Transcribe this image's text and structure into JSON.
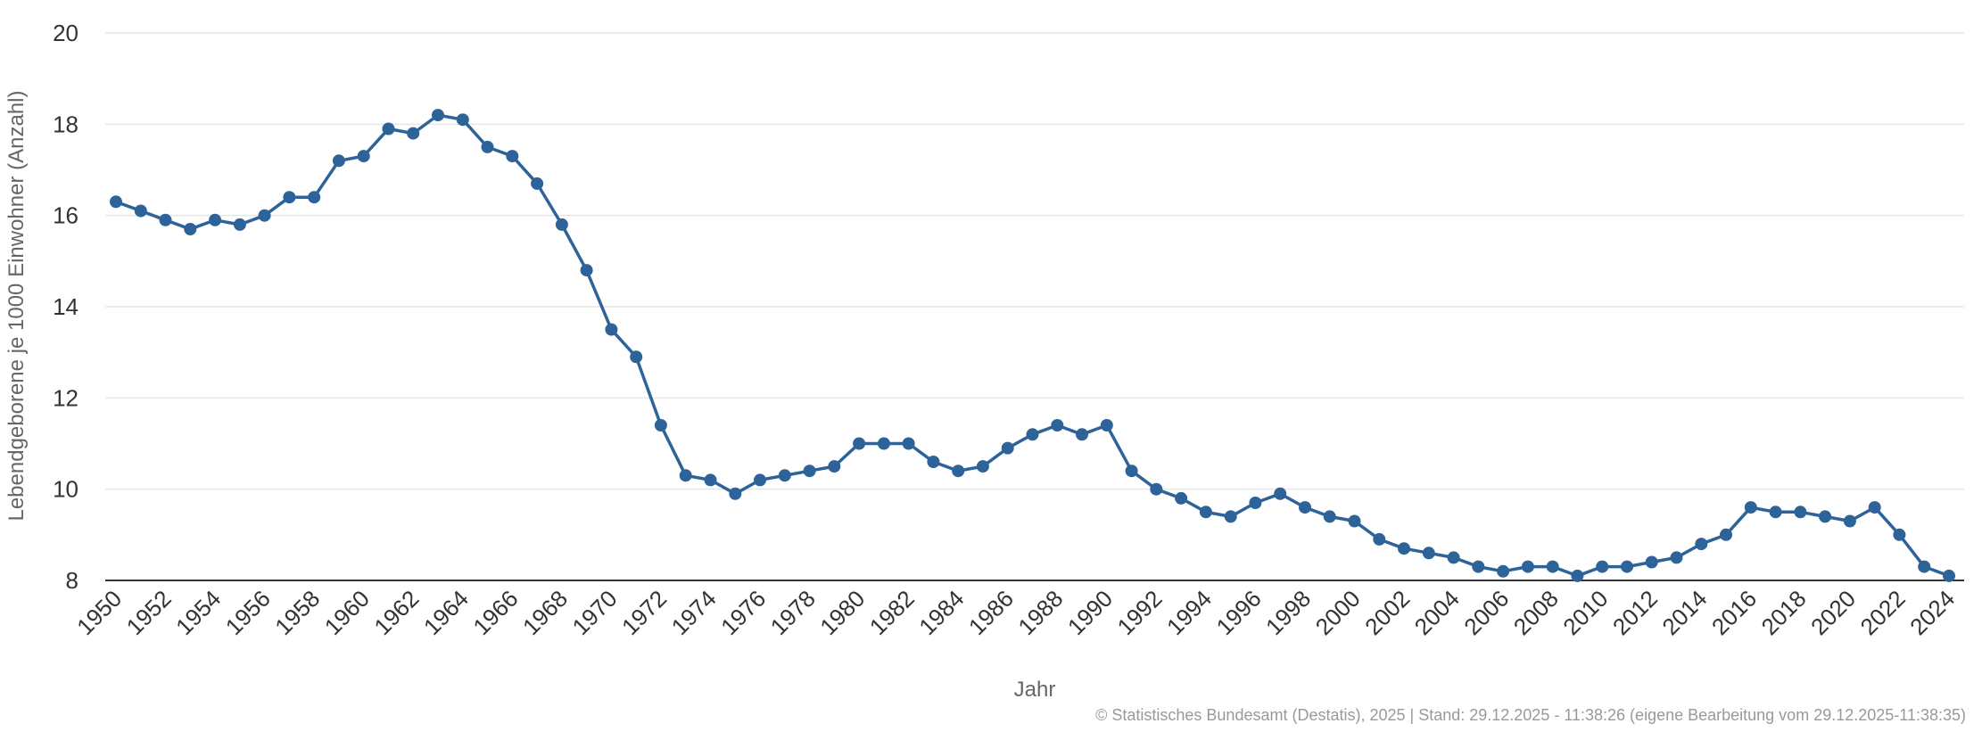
{
  "chart_data": {
    "type": "line",
    "title": "",
    "xlabel": "Jahr",
    "ylabel": "Lebendgeborene je 1000 Einwohner (Anzahl)",
    "ylim": [
      8,
      20
    ],
    "yticks": [
      "8",
      "10",
      "12",
      "14",
      "16",
      "18",
      "20"
    ],
    "grid": true,
    "credits": "© Statistisches Bundesamt (Destatis), 2025 | Stand: 29.12.2025 - 11:38:26 (eigene Bearbeitung vom 29.12.2025-11:38:35)",
    "x": [
      1950,
      1951,
      1952,
      1953,
      1954,
      1955,
      1956,
      1957,
      1958,
      1959,
      1960,
      1961,
      1962,
      1963,
      1964,
      1965,
      1966,
      1967,
      1968,
      1969,
      1970,
      1971,
      1972,
      1973,
      1974,
      1975,
      1976,
      1977,
      1978,
      1979,
      1980,
      1981,
      1982,
      1983,
      1984,
      1985,
      1986,
      1987,
      1988,
      1989,
      1990,
      1991,
      1992,
      1993,
      1994,
      1995,
      1996,
      1997,
      1998,
      1999,
      2000,
      2001,
      2002,
      2003,
      2004,
      2005,
      2006,
      2007,
      2008,
      2009,
      2010,
      2011,
      2012,
      2013,
      2014,
      2015,
      2016,
      2017,
      2018,
      2019,
      2020,
      2021,
      2022,
      2023,
      2024
    ],
    "xtick_labels": [
      "1950",
      "1952",
      "1954",
      "1956",
      "1958",
      "1960",
      "1962",
      "1964",
      "1966",
      "1968",
      "1970",
      "1972",
      "1974",
      "1976",
      "1978",
      "1980",
      "1982",
      "1984",
      "1986",
      "1988",
      "1990",
      "1992",
      "1994",
      "1996",
      "1998",
      "2000",
      "2002",
      "2004",
      "2006",
      "2008",
      "2010",
      "2012",
      "2014",
      "2016",
      "2018",
      "2020",
      "2022",
      "2024"
    ],
    "series": [
      {
        "name": "Lebendgeborene je 1000 Einwohner",
        "color": "#2e6399",
        "values": [
          16.3,
          16.1,
          15.9,
          15.7,
          15.9,
          15.8,
          16.0,
          16.4,
          16.4,
          17.2,
          17.3,
          17.9,
          17.8,
          18.2,
          18.1,
          17.5,
          17.3,
          16.7,
          15.8,
          14.8,
          13.5,
          12.9,
          11.4,
          10.3,
          10.2,
          9.9,
          10.2,
          10.3,
          10.4,
          10.5,
          11.0,
          11.0,
          11.0,
          10.6,
          10.4,
          10.5,
          10.9,
          11.2,
          11.4,
          11.2,
          11.4,
          10.4,
          10.0,
          9.8,
          9.5,
          9.4,
          9.7,
          9.9,
          9.6,
          9.4,
          9.3,
          8.9,
          8.7,
          8.6,
          8.5,
          8.3,
          8.2,
          8.3,
          8.3,
          8.1,
          8.3,
          8.3,
          8.4,
          8.5,
          8.8,
          9.0,
          9.6,
          9.5,
          9.5,
          9.4,
          9.3,
          9.6,
          9.0,
          8.3,
          8.1
        ]
      }
    ]
  }
}
